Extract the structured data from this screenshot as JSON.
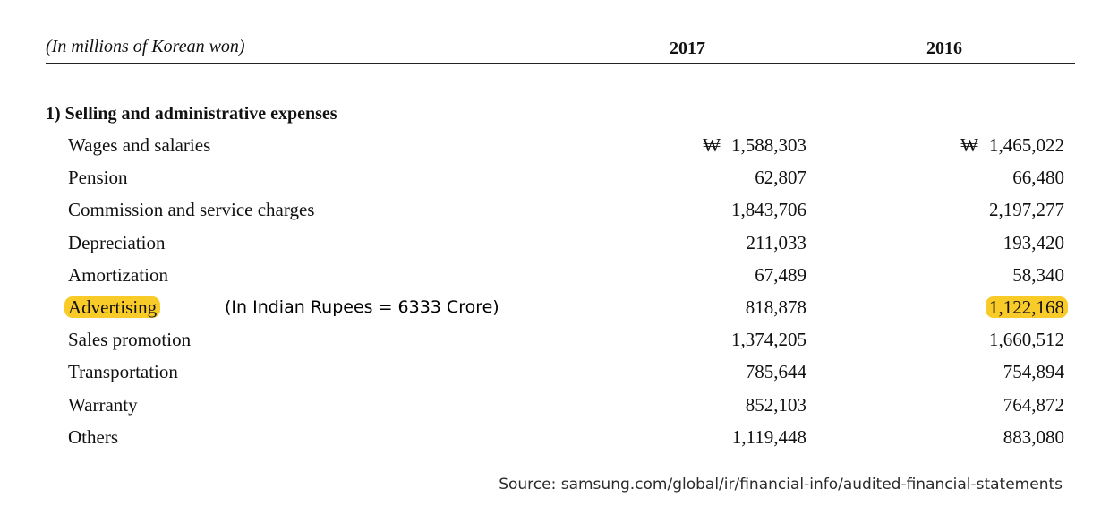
{
  "header": {
    "unit_label": "(In millions of Korean won)",
    "years": [
      "2017",
      "2016"
    ]
  },
  "section": {
    "title": "1) Selling and administrative expenses"
  },
  "currency_symbol": "₩",
  "rows": [
    {
      "label": "Wages and salaries",
      "v2017": "1,588,303",
      "v2016": "1,465,022"
    },
    {
      "label": "Pension",
      "v2017": "62,807",
      "v2016": "66,480"
    },
    {
      "label": "Commission and service charges",
      "v2017": "1,843,706",
      "v2016": "2,197,277"
    },
    {
      "label": "Depreciation",
      "v2017": "211,033",
      "v2016": "193,420"
    },
    {
      "label": "Amortization",
      "v2017": "67,489",
      "v2016": "58,340"
    },
    {
      "label": "Advertising",
      "v2017": "818,878",
      "v2016": "1,122,168"
    },
    {
      "label": "Sales promotion",
      "v2017": "1,374,205",
      "v2016": "1,660,512"
    },
    {
      "label": "Transportation",
      "v2017": "785,644",
      "v2016": "754,894"
    },
    {
      "label": "Warranty",
      "v2017": "852,103",
      "v2016": "764,872"
    },
    {
      "label": "Others",
      "v2017": "1,119,448",
      "v2016": "883,080"
    }
  ],
  "annotation": "(In Indian Rupees = 6333 Crore)",
  "highlight_color": "#f9cb28",
  "source": "Source: samsung.com/global/ir/financial-info/audited-financial-statements"
}
